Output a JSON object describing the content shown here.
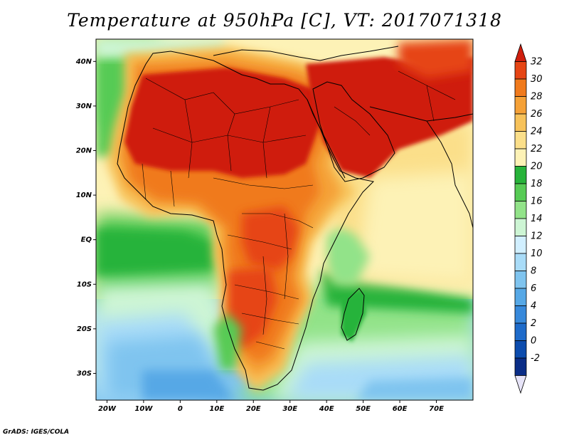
{
  "title": "Temperature at 950hPa [C], VT: 2017071318",
  "credit": "GrADS: IGES/COLA",
  "map": {
    "region": "Africa, Arabian Peninsula and Indian Ocean",
    "lon_range": [
      -23,
      80
    ],
    "lat_range": [
      -36,
      45
    ],
    "lat_ticks": [
      {
        "value": 40,
        "label": "40N"
      },
      {
        "value": 30,
        "label": "30N"
      },
      {
        "value": 20,
        "label": "20N"
      },
      {
        "value": 10,
        "label": "10N"
      },
      {
        "value": 0,
        "label": "EQ"
      },
      {
        "value": -10,
        "label": "10S"
      },
      {
        "value": -20,
        "label": "20S"
      },
      {
        "value": -30,
        "label": "30S"
      }
    ],
    "lon_ticks": [
      {
        "value": -20,
        "label": "20W"
      },
      {
        "value": -10,
        "label": "10W"
      },
      {
        "value": 0,
        "label": "0"
      },
      {
        "value": 10,
        "label": "10E"
      },
      {
        "value": 20,
        "label": "20E"
      },
      {
        "value": 30,
        "label": "30E"
      },
      {
        "value": 40,
        "label": "40E"
      },
      {
        "value": 50,
        "label": "50E"
      },
      {
        "value": 60,
        "label": "60E"
      },
      {
        "value": 70,
        "label": "70E"
      }
    ]
  },
  "colorbar": {
    "labels": [
      "32",
      "30",
      "28",
      "26",
      "24",
      "22",
      "20",
      "18",
      "16",
      "14",
      "12",
      "10",
      "8",
      "6",
      "4",
      "2",
      "0",
      "-2"
    ],
    "colors": [
      "#cf1e0e",
      "#e64514",
      "#f07a1c",
      "#f5a137",
      "#f7c25a",
      "#fbdf8a",
      "#fdf2b6",
      "#27b33a",
      "#57cb55",
      "#92e389",
      "#cdf5d4",
      "#d1efff",
      "#a9dcf8",
      "#7fc4ef",
      "#56a8e6",
      "#3789db",
      "#1e6bca",
      "#0c4cae",
      "#0a2d87",
      "#e7e4f8"
    ],
    "colors_order": "top-to-bottom, first is the upper arrow tip, last is the lower arrow tip"
  }
}
